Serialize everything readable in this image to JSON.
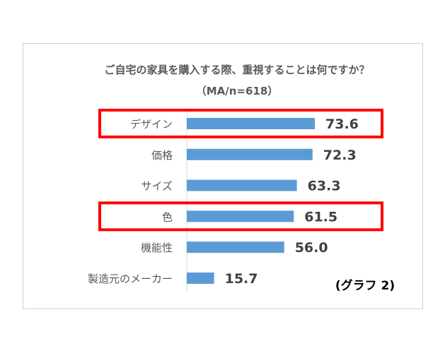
{
  "chart_data": {
    "type": "bar",
    "orientation": "horizontal",
    "title": "ご自宅の家具を購入する際、重視することは何ですか？",
    "subtitle": "（MA/n=618）",
    "categories": [
      "デザイン",
      "価格",
      "サイズ",
      "色",
      "機能性",
      "製造元のメーカー"
    ],
    "values": [
      73.6,
      72.3,
      63.3,
      61.5,
      56.0,
      15.7
    ],
    "value_labels": [
      "73.6",
      "72.3",
      "63.3",
      "61.5",
      "56.0",
      "15.7"
    ],
    "highlighted_categories": [
      "デザイン",
      "色"
    ],
    "xlim": [
      0,
      100
    ],
    "grid": false,
    "legend": "none",
    "annotation": "(グラフ 2)",
    "colors": {
      "bar": "#5b9bd5",
      "highlight_box": "#ff0000",
      "axis": "#d9d9d9"
    }
  }
}
